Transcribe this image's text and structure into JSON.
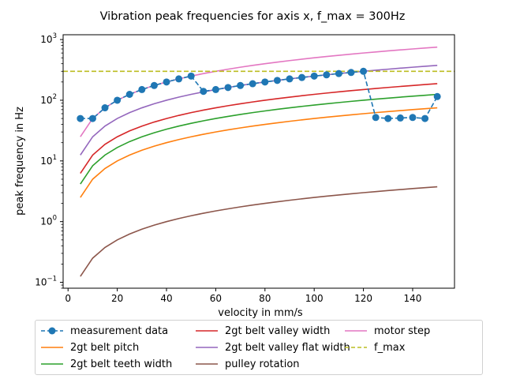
{
  "chart_data": {
    "type": "line",
    "title": "Vibration peak frequencies for axis x, f_max = 300Hz",
    "xlabel": "velocity in mm/s",
    "ylabel": "peak frequency in Hz",
    "xlim": [
      -2,
      157
    ],
    "ylim": [
      0.08,
      1200
    ],
    "yscale": "log",
    "xticks": [
      0,
      20,
      40,
      60,
      80,
      100,
      120,
      140
    ],
    "yticks": [
      {
        "value": 0.1,
        "base": "10",
        "exp": "−1"
      },
      {
        "value": 1,
        "base": "10",
        "exp": "0"
      },
      {
        "value": 10,
        "base": "10",
        "exp": "1"
      },
      {
        "value": 100,
        "base": "10",
        "exp": "2"
      },
      {
        "value": 1000,
        "base": "10",
        "exp": "3"
      }
    ],
    "grid": false,
    "legend": "below",
    "series": [
      {
        "name": "measurement data",
        "color": "#1f77b4",
        "style": "dashed-markers",
        "x": [
          5,
          10,
          15,
          20,
          25,
          30,
          35,
          40,
          45,
          50,
          55,
          60,
          65,
          70,
          75,
          80,
          85,
          90,
          95,
          100,
          105,
          110,
          115,
          120,
          125,
          130,
          135,
          140,
          145,
          150
        ],
        "y": [
          50,
          50,
          75,
          100,
          125,
          150,
          175,
          200,
          225,
          250,
          140,
          150,
          162,
          175,
          187,
          200,
          212,
          225,
          237,
          250,
          262,
          275,
          287,
          300,
          52,
          50,
          51,
          52,
          50,
          115
        ]
      },
      {
        "name": "2gt belt pitch",
        "color": "#ff7f0e",
        "style": "solid",
        "func": "x/2"
      },
      {
        "name": "2gt belt teeth width",
        "color": "#2ca02c",
        "style": "solid",
        "func": "x/1.2"
      },
      {
        "name": "2gt belt valley width",
        "color": "#d62728",
        "style": "solid",
        "func": "x/0.8"
      },
      {
        "name": "2gt belt valley flat width",
        "color": "#9467bd",
        "style": "solid",
        "func": "x/0.4"
      },
      {
        "name": "pulley rotation",
        "color": "#8c564b",
        "style": "solid",
        "func": "x/40"
      },
      {
        "name": "motor step",
        "color": "#e377c2",
        "style": "solid",
        "func": "x/0.2"
      },
      {
        "name": "f_max",
        "color": "#bcbd22",
        "style": "dashed",
        "value": 300
      }
    ]
  }
}
